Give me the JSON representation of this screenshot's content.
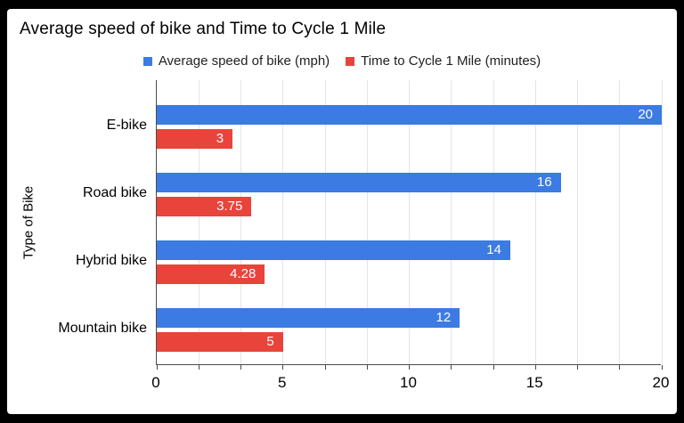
{
  "frame": {
    "background": "#000000",
    "card_background": "#ffffff"
  },
  "title": "Average speed of bike and Time to Cycle 1 Mile",
  "legend": [
    {
      "label": "Average speed of bike (mph)",
      "color": "#3b7be3"
    },
    {
      "label": "Time to Cycle 1 Mile (minutes)",
      "color": "#e8443b"
    }
  ],
  "axes": {
    "y_title": "Type of Bike",
    "x_major_ticks": [
      0,
      5,
      10,
      15,
      20
    ],
    "x_minor_divisions_per_major": 3,
    "x_min": 0,
    "x_max": 20
  },
  "colors": {
    "gridline": "#e4e4e4",
    "axis_line": "#4a4a4a",
    "bar_value_text": "#ffffff"
  },
  "chart_data": {
    "type": "bar",
    "orientation": "horizontal",
    "title": "Average speed of bike and Time to Cycle 1 Mile",
    "categories": [
      "E-bike",
      "Road bike",
      "Hybrid bike",
      "Mountain bike"
    ],
    "series": [
      {
        "name": "Average speed of bike (mph)",
        "color": "#3b7be3",
        "values": [
          20,
          16,
          14,
          12
        ]
      },
      {
        "name": "Time to Cycle 1 Mile (minutes)",
        "color": "#e8443b",
        "values": [
          3,
          3.75,
          4.28,
          5
        ]
      }
    ],
    "xlabel": "",
    "ylabel": "Type of Bike",
    "xlim": [
      0,
      20
    ],
    "grid": "vertical, minor every 5/3 units",
    "legend_position": "top",
    "value_labels": "inside-end, white"
  }
}
